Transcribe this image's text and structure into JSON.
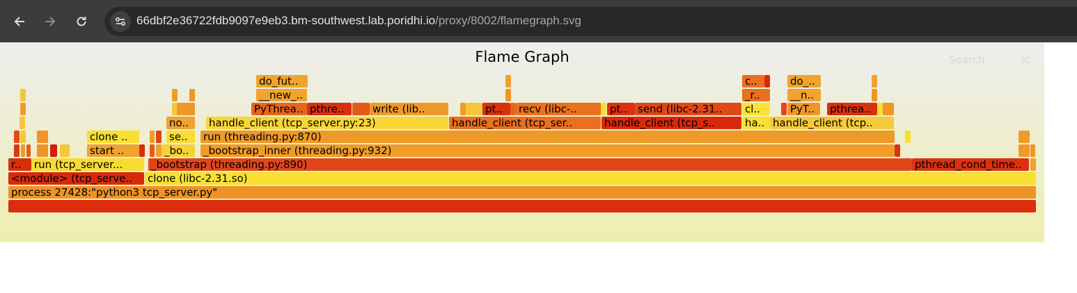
{
  "browser": {
    "url_host": "66dbf2e36722fdb9097e9eb3.bm-southwest.lab.poridhi.io",
    "url_path": "/proxy/8002/flamegraph.svg",
    "back_icon": "arrow-left",
    "forward_icon": "arrow-right",
    "reload_icon": "reload",
    "site_info_icon": "tune"
  },
  "flamegraph": {
    "title": "Flame Graph",
    "search_label": "Search",
    "ic_label": "ic",
    "frames": [
      {
        "label": "",
        "color": "#dc2e0e"
      },
      {
        "label": "process 27428:\"python3 tcp_server.py\"",
        "color": "#ee9326"
      },
      {
        "label": "<module> (tcp_serve..",
        "color": "#d82a0c"
      },
      {
        "label": "clone (libc-2.31.so)",
        "color": "#f9e031"
      },
      {
        "label": "r..",
        "color": "#d6300d"
      },
      {
        "label": "run (tcp_server...",
        "color": "#f8dc33"
      },
      {
        "label": "_bootstrap (threading.py:890)",
        "color": "#e1461a"
      },
      {
        "label": "pthread_cond_time..",
        "color": "#db3110"
      },
      {
        "label": "",
        "color": "#f0a12e"
      },
      {
        "label": "",
        "color": "#da3813"
      },
      {
        "label": "",
        "color": "#ee9a28"
      },
      {
        "label": "",
        "color": "#e65a1b"
      },
      {
        "label": "",
        "color": "#ee9328"
      },
      {
        "label": "",
        "color": "#d41c0b"
      },
      {
        "label": "",
        "color": "#f4c83a"
      },
      {
        "label": "start ..",
        "color": "#f0a42e"
      },
      {
        "label": "",
        "color": "#dc2a0e"
      },
      {
        "label": "",
        "color": "#e8591c"
      },
      {
        "label": "",
        "color": "#f0a02e"
      },
      {
        "label": "_bo..",
        "color": "#f7d236"
      },
      {
        "label": "_bootstrap_inner (threading.py:932)",
        "color": "#ef9c28"
      },
      {
        "label": "",
        "color": "#d83410"
      },
      {
        "label": "",
        "color": "#f09a28"
      },
      {
        "label": "",
        "color": "#ee9626"
      },
      {
        "label": "",
        "color": "#e34a18"
      },
      {
        "label": "",
        "color": "#f4c83a"
      },
      {
        "label": "",
        "color": "#ee9428"
      },
      {
        "label": "clone ..",
        "color": "#f9df34"
      },
      {
        "label": "",
        "color": "#ef9a2a"
      },
      {
        "label": "",
        "color": "#df4516"
      },
      {
        "label": "se..",
        "color": "#f9dd36"
      },
      {
        "label": "run (threading.py:870)",
        "color": "#ee9a28"
      },
      {
        "label": "",
        "color": "#f9df34"
      },
      {
        "label": "",
        "color": "#ee9b2a"
      },
      {
        "label": "",
        "color": "#f4c63a"
      },
      {
        "label": "no..",
        "color": "#f0a12e"
      },
      {
        "label": "handle_client (tcp_server.py:23)",
        "color": "#f8d636"
      },
      {
        "label": "handle_client (tcp_ser..",
        "color": "#e9701e"
      },
      {
        "label": "handle_client (tcp_s..",
        "color": "#d8280c"
      },
      {
        "label": "ha..",
        "color": "#f9e034"
      },
      {
        "label": "handle_client (tcp..",
        "color": "#f5c93a"
      },
      {
        "label": "",
        "color": "#ef9a2a"
      },
      {
        "label": "",
        "color": "#f4c63a"
      },
      {
        "label": "",
        "color": "#ee9628"
      },
      {
        "label": "",
        "color": "#f0a12e"
      },
      {
        "label": "PyThrea..",
        "color": "#e6661c"
      },
      {
        "label": "pthre..",
        "color": "#d8300f"
      },
      {
        "label": "",
        "color": "#e55a1b"
      },
      {
        "label": "write (lib..",
        "color": "#ee9a2a"
      },
      {
        "label": "",
        "color": "#f09c28"
      },
      {
        "label": "",
        "color": "#f5c839"
      },
      {
        "label": "pt..",
        "color": "#d9300f"
      },
      {
        "label": "",
        "color": "#e8661c"
      },
      {
        "label": "recv (libc-..",
        "color": "#e8701e"
      },
      {
        "label": "",
        "color": "#f9df34"
      },
      {
        "label": "pt..",
        "color": "#da3210"
      },
      {
        "label": "send (libc-2.31..",
        "color": "#df4818"
      },
      {
        "label": "cl..",
        "color": "#f9e334"
      },
      {
        "label": "",
        "color": "#e8451a"
      },
      {
        "label": "PyT..",
        "color": "#ee9628"
      },
      {
        "label": "pthrea..",
        "color": "#d8300f"
      },
      {
        "label": "",
        "color": "#f9df34"
      },
      {
        "label": "",
        "color": "#ee9628"
      },
      {
        "label": "",
        "color": "#f4c63a"
      },
      {
        "label": "",
        "color": "#ef9a2a"
      },
      {
        "label": "",
        "color": "#ee9628"
      },
      {
        "label": "",
        "color": "#ef9a2a"
      },
      {
        "label": "__new_..",
        "color": "#f0a42e"
      },
      {
        "label": "",
        "color": "#ee9628"
      },
      {
        "label": "_r..",
        "color": "#e9701e"
      },
      {
        "label": "__n..",
        "color": "#f0a42e"
      },
      {
        "label": "",
        "color": "#ee9628"
      },
      {
        "label": "do_fut..",
        "color": "#f0a42e"
      },
      {
        "label": "",
        "color": "#f0a12e"
      },
      {
        "label": "c..",
        "color": "#e9701e"
      },
      {
        "label": "",
        "color": "#d8280c"
      },
      {
        "label": "do_..",
        "color": "#f0a42e"
      },
      {
        "label": "",
        "color": "#f0a12e"
      }
    ]
  }
}
